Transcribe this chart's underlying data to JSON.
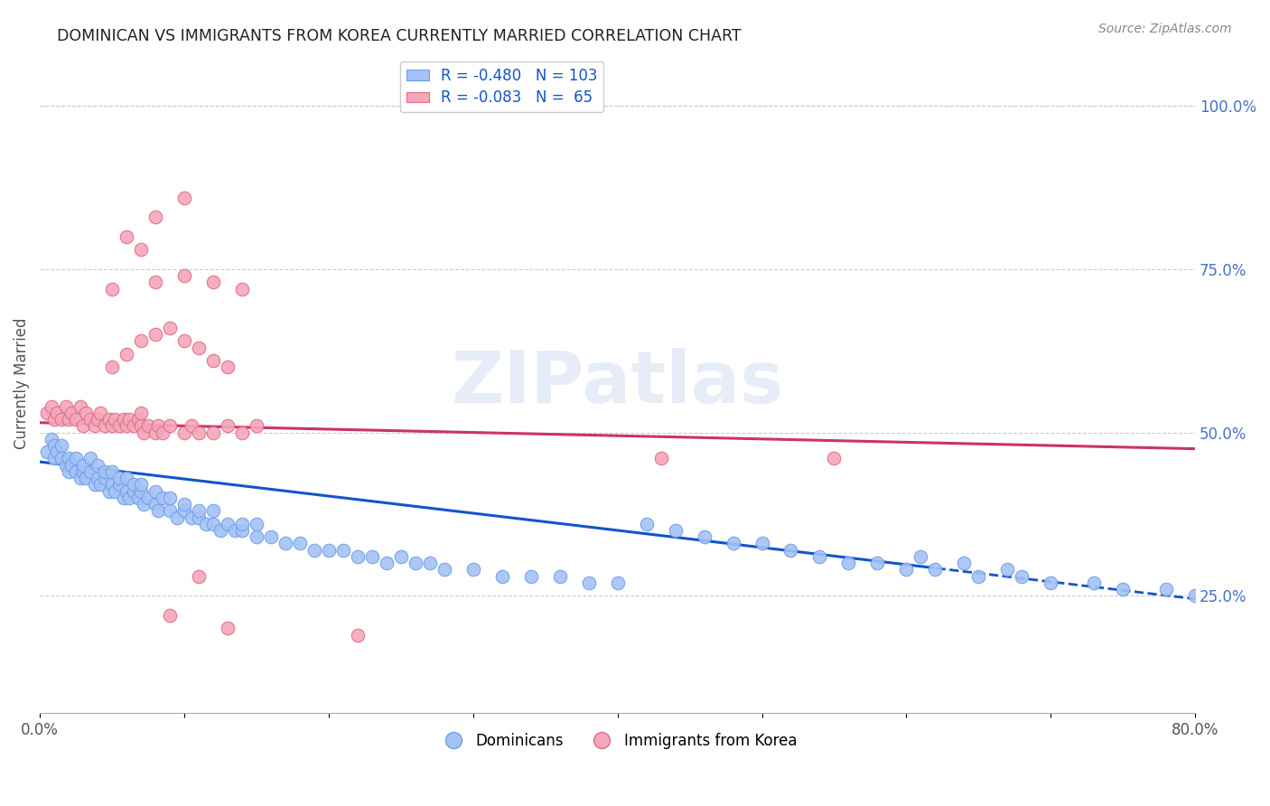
{
  "title": "DOMINICAN VS IMMIGRANTS FROM KOREA CURRENTLY MARRIED CORRELATION CHART",
  "source": "Source: ZipAtlas.com",
  "ylabel": "Currently Married",
  "right_yticks": [
    "100.0%",
    "75.0%",
    "50.0%",
    "25.0%"
  ],
  "right_ytick_vals": [
    1.0,
    0.75,
    0.5,
    0.25
  ],
  "watermark": "ZIPatlas",
  "legend1_label": "R = -0.480   N = 103",
  "legend2_label": "R = -0.083   N =  65",
  "blue_color": "#a4c2f4",
  "pink_color": "#f4a7b9",
  "blue_edge_color": "#6d9eeb",
  "pink_edge_color": "#e06c88",
  "blue_line_color": "#1155cc",
  "pink_line_color": "#cc3366",
  "xmin": 0.0,
  "xmax": 0.8,
  "ymin": 0.07,
  "ymax": 1.08,
  "blue_scatter_x": [
    0.005,
    0.008,
    0.01,
    0.01,
    0.012,
    0.015,
    0.015,
    0.018,
    0.02,
    0.02,
    0.022,
    0.025,
    0.025,
    0.028,
    0.03,
    0.03,
    0.032,
    0.035,
    0.035,
    0.038,
    0.04,
    0.04,
    0.042,
    0.045,
    0.045,
    0.048,
    0.05,
    0.05,
    0.052,
    0.055,
    0.055,
    0.058,
    0.06,
    0.06,
    0.062,
    0.065,
    0.065,
    0.068,
    0.07,
    0.07,
    0.072,
    0.075,
    0.08,
    0.08,
    0.082,
    0.085,
    0.09,
    0.09,
    0.095,
    0.1,
    0.1,
    0.105,
    0.11,
    0.11,
    0.115,
    0.12,
    0.12,
    0.125,
    0.13,
    0.135,
    0.14,
    0.14,
    0.15,
    0.15,
    0.16,
    0.17,
    0.18,
    0.19,
    0.2,
    0.21,
    0.22,
    0.23,
    0.24,
    0.25,
    0.26,
    0.27,
    0.28,
    0.3,
    0.32,
    0.34,
    0.36,
    0.38,
    0.4,
    0.42,
    0.44,
    0.46,
    0.48,
    0.5,
    0.52,
    0.54,
    0.56,
    0.58,
    0.6,
    0.62,
    0.65,
    0.68,
    0.7,
    0.73,
    0.75,
    0.78,
    0.8,
    0.61,
    0.64,
    0.67
  ],
  "blue_scatter_y": [
    0.47,
    0.49,
    0.46,
    0.48,
    0.47,
    0.46,
    0.48,
    0.45,
    0.44,
    0.46,
    0.45,
    0.44,
    0.46,
    0.43,
    0.44,
    0.45,
    0.43,
    0.44,
    0.46,
    0.42,
    0.43,
    0.45,
    0.42,
    0.43,
    0.44,
    0.41,
    0.42,
    0.44,
    0.41,
    0.42,
    0.43,
    0.4,
    0.41,
    0.43,
    0.4,
    0.41,
    0.42,
    0.4,
    0.41,
    0.42,
    0.39,
    0.4,
    0.39,
    0.41,
    0.38,
    0.4,
    0.38,
    0.4,
    0.37,
    0.38,
    0.39,
    0.37,
    0.37,
    0.38,
    0.36,
    0.36,
    0.38,
    0.35,
    0.36,
    0.35,
    0.35,
    0.36,
    0.34,
    0.36,
    0.34,
    0.33,
    0.33,
    0.32,
    0.32,
    0.32,
    0.31,
    0.31,
    0.3,
    0.31,
    0.3,
    0.3,
    0.29,
    0.29,
    0.28,
    0.28,
    0.28,
    0.27,
    0.27,
    0.36,
    0.35,
    0.34,
    0.33,
    0.33,
    0.32,
    0.31,
    0.3,
    0.3,
    0.29,
    0.29,
    0.28,
    0.28,
    0.27,
    0.27,
    0.26,
    0.26,
    0.25,
    0.31,
    0.3,
    0.29
  ],
  "pink_scatter_x": [
    0.005,
    0.008,
    0.01,
    0.012,
    0.015,
    0.018,
    0.02,
    0.022,
    0.025,
    0.028,
    0.03,
    0.032,
    0.035,
    0.038,
    0.04,
    0.042,
    0.045,
    0.048,
    0.05,
    0.052,
    0.055,
    0.058,
    0.06,
    0.062,
    0.065,
    0.068,
    0.07,
    0.07,
    0.072,
    0.075,
    0.08,
    0.082,
    0.085,
    0.09,
    0.1,
    0.105,
    0.11,
    0.12,
    0.13,
    0.14,
    0.15,
    0.05,
    0.06,
    0.07,
    0.08,
    0.09,
    0.1,
    0.11,
    0.12,
    0.13,
    0.05,
    0.08,
    0.1,
    0.12,
    0.14,
    0.43,
    0.22,
    0.55,
    0.1,
    0.08,
    0.06,
    0.07,
    0.09,
    0.11,
    0.13
  ],
  "pink_scatter_y": [
    0.53,
    0.54,
    0.52,
    0.53,
    0.52,
    0.54,
    0.52,
    0.53,
    0.52,
    0.54,
    0.51,
    0.53,
    0.52,
    0.51,
    0.52,
    0.53,
    0.51,
    0.52,
    0.51,
    0.52,
    0.51,
    0.52,
    0.51,
    0.52,
    0.51,
    0.52,
    0.51,
    0.53,
    0.5,
    0.51,
    0.5,
    0.51,
    0.5,
    0.51,
    0.5,
    0.51,
    0.5,
    0.5,
    0.51,
    0.5,
    0.51,
    0.6,
    0.62,
    0.64,
    0.65,
    0.66,
    0.64,
    0.63,
    0.61,
    0.6,
    0.72,
    0.73,
    0.74,
    0.73,
    0.72,
    0.46,
    0.19,
    0.46,
    0.86,
    0.83,
    0.8,
    0.78,
    0.22,
    0.28,
    0.2
  ]
}
